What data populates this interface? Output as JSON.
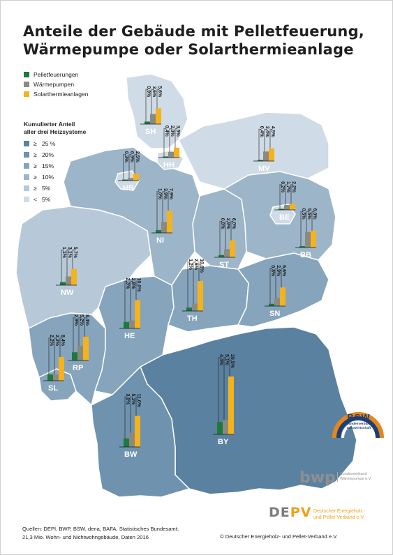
{
  "title_line1": "Anteile der Gebäude mit Pelletfeuerung,",
  "title_line2": "Wärmepumpe oder Solarthermieanlage",
  "series_legend": [
    {
      "label": "Pelletfeuerungen",
      "color": "#1d7a3e"
    },
    {
      "label": "Wärmepumpen",
      "color": "#8a8a82"
    },
    {
      "label": "Solarthermieanlagen",
      "color": "#f5b21b"
    }
  ],
  "cumul_title_line1": "Kumulierter Anteil",
  "cumul_title_line2": "aller drei Heizsysteme",
  "cumul_legend": [
    {
      "sym": "≥",
      "label": "25 %",
      "color": "#5a82a0"
    },
    {
      "sym": "≥",
      "label": "20%",
      "color": "#6f93ae"
    },
    {
      "sym": "≥",
      "label": "15%",
      "color": "#86a4bc"
    },
    {
      "sym": "≥",
      "label": "10%",
      "color": "#9db5c9"
    },
    {
      "sym": "≥",
      "label": "5%",
      "color": "#b7c9d8"
    },
    {
      "sym": "<",
      "label": "5%",
      "color": "#cfdbe6"
    }
  ],
  "chart_data": {
    "type": "bar",
    "series": [
      "Pelletfeuerungen",
      "Wärmepumpen",
      "Solarthermieanlagen"
    ],
    "unit": "%",
    "states": [
      {
        "code": "SH",
        "values": [
          0.9,
          3.6,
          5.6
        ],
        "labels": [
          "0,9%",
          "3,6%",
          "5,6%"
        ]
      },
      {
        "code": "HH",
        "values": [
          0.4,
          2.0,
          3.5
        ],
        "labels": [
          "0,4%",
          "2,0%",
          "3,5%"
        ]
      },
      {
        "code": "MV",
        "values": [
          0.4,
          3.4,
          4.5
        ],
        "labels": [
          "0,4%",
          "3,4%",
          "4,5%"
        ]
      },
      {
        "code": "HB",
        "values": [
          0.3,
          0.9,
          2.5
        ],
        "labels": [
          "0,3%",
          "0,9%",
          "2,5%"
        ]
      },
      {
        "code": "BE",
        "values": [
          0.2,
          1.7,
          2.2
        ],
        "labels": [
          "0,2%",
          "1,7%",
          "2,2%"
        ]
      },
      {
        "code": "NI",
        "values": [
          1.0,
          3.9,
          7.9
        ],
        "labels": [
          "1,0%",
          "3,9%",
          "7,9%"
        ]
      },
      {
        "code": "BB",
        "values": [
          0.5,
          5.5,
          6.0
        ],
        "labels": [
          "0,5%",
          "5,5%",
          "6,0%"
        ]
      },
      {
        "code": "ST",
        "values": [
          0.8,
          2.9,
          6.0
        ],
        "labels": [
          "0,8%",
          "2,9%",
          "6,0%"
        ]
      },
      {
        "code": "NW",
        "values": [
          1.1,
          3.1,
          5.7
        ],
        "labels": [
          "1,1%",
          "3,1%",
          "5,7%"
        ]
      },
      {
        "code": "SN",
        "values": [
          0.8,
          2.9,
          6.6
        ],
        "labels": [
          "0,8%",
          "2,9%",
          "6,6%"
        ]
      },
      {
        "code": "TH",
        "values": [
          1.2,
          2.6,
          10.6
        ],
        "labels": [
          "1,2%",
          "2,6%",
          "10,6%"
        ]
      },
      {
        "code": "HE",
        "values": [
          2.3,
          2.8,
          10.0
        ],
        "labels": [
          "2,3%",
          "2,8%",
          "10,0%"
        ]
      },
      {
        "code": "RP",
        "values": [
          2.9,
          5.2,
          8.4
        ],
        "labels": [
          "2,9%",
          "5,2%",
          "8,4%"
        ]
      },
      {
        "code": "SL",
        "values": [
          2.2,
          2.2,
          8.4
        ],
        "labels": [
          "2,2%",
          "2,2%",
          "8,4%"
        ]
      },
      {
        "code": "BY",
        "values": [
          4.4,
          5.1,
          20.5
        ],
        "labels": [
          "4,4%",
          "5,1%",
          "20,5%"
        ]
      },
      {
        "code": "BW",
        "values": [
          3.0,
          5.1,
          11.0
        ],
        "labels": [
          "3,0%",
          "5,1%",
          "11,0%"
        ]
      }
    ]
  },
  "logos": {
    "bsw_name": "BSW",
    "bsw_sub1": "Bundesverband",
    "bsw_sub2": "Solarwirtschaft",
    "bwp_name": "bwp",
    "bwp_sub1": "Bundesverband",
    "bwp_sub2": "Wärmepumpe e.V.",
    "depv_d": "DE",
    "depv_pv": "PV",
    "depv_sub1": "Deutscher Energieholz-",
    "depv_sub2": "und Pellet-Verband e.V."
  },
  "sources_line1": "Quellen: DEPI, BWP, BSW, dena, BAFA, Statistisches Bundesamt;",
  "sources_line2": "21,3 Mio. Wohn- und Nichtwohngebäude, Daten 2016",
  "copyright": "© Deutscher Energieholz- und Pellet-Verband e.V."
}
